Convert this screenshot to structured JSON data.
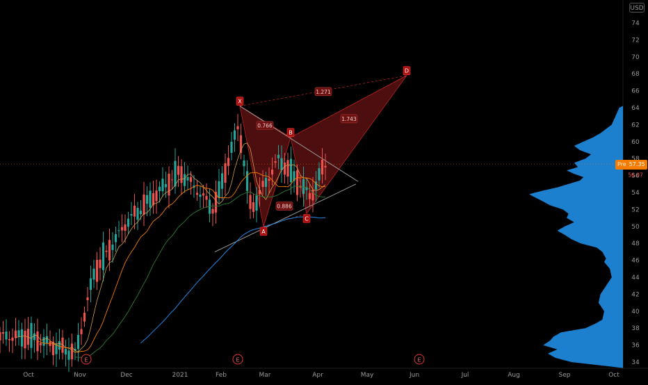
{
  "currency": "USD",
  "price_label": {
    "prefix": "Pre",
    "price": "57.35",
    "change": "56.07"
  },
  "colors": {
    "background": "#000000",
    "candle_up": "#26a69a",
    "candle_down": "#ef5350",
    "ma_orange": "#f57c00",
    "ma_green": "#2e7d32",
    "ma_blue": "#1e88e5",
    "pattern_fill": "#8b1a1a",
    "volume_profile": "#2196f3",
    "axis_text": "#9a9a9a"
  },
  "chart_data": {
    "type": "candlestick",
    "y_axis": {
      "ticks": [
        34,
        36,
        38,
        40,
        42,
        44,
        46,
        48,
        50,
        52,
        54,
        56,
        58,
        60,
        62,
        64,
        66,
        68,
        70,
        72,
        74
      ],
      "range": [
        33,
        76
      ]
    },
    "x_axis": {
      "ticks": [
        "Oct",
        "Nov",
        "Dec",
        "2021",
        "Feb",
        "Mar",
        "Apr",
        "May",
        "Jun",
        "Jul",
        "Aug",
        "Sep",
        "Oct"
      ]
    },
    "earnings_markers": [
      "E",
      "E",
      "E"
    ],
    "close_anchors": [
      [
        "Oct",
        37.0
      ],
      [
        "Nov",
        35.0
      ],
      [
        "Nov",
        44.5
      ],
      [
        "Dec",
        50.5
      ],
      [
        "2021",
        56.5
      ],
      [
        "Feb",
        52.0
      ],
      [
        "Feb",
        62.0
      ],
      [
        "Mar",
        52.0
      ],
      [
        "Mar",
        58.0
      ],
      [
        "Apr",
        53.5
      ],
      [
        "Apr",
        57.35
      ]
    ],
    "harmonic_pattern": {
      "points": [
        {
          "label": "X",
          "price": 64.2
        },
        {
          "label": "A",
          "price": 50.0
        },
        {
          "label": "B",
          "price": 60.5
        },
        {
          "label": "C",
          "price": 51.5
        },
        {
          "label": "D",
          "price": 67.8
        }
      ],
      "ratios": [
        "0.766",
        "0.886",
        "1.271",
        "1.743"
      ]
    },
    "grid": false,
    "legend": "none"
  }
}
